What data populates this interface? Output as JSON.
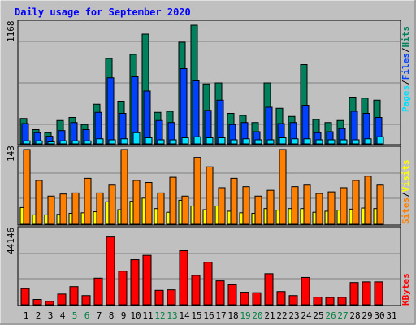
{
  "title": "Daily usage for September 2020",
  "colors": {
    "background": "#c0c0c0",
    "hits": "#00805c",
    "files": "#0040ff",
    "pages": "#00e0ff",
    "visits": "#ffff00",
    "sites": "#ff8000",
    "kbytes": "#ff0000",
    "weekend_day_label": "#008040",
    "title": "#0000ff"
  },
  "chart_data": [
    {
      "type": "bar",
      "panel": "hits-files-pages",
      "ymax_label": "1168",
      "ylim": [
        0,
        1168
      ],
      "legend": [
        "Pages",
        "/",
        "Files",
        "/",
        "Hits"
      ],
      "categories": [
        "1",
        "2",
        "3",
        "4",
        "5",
        "6",
        "7",
        "8",
        "9",
        "10",
        "11",
        "12",
        "13",
        "14",
        "15",
        "16",
        "17",
        "18",
        "19",
        "20",
        "21",
        "22",
        "23",
        "24",
        "25",
        "26",
        "27",
        "28",
        "29",
        "30",
        "31"
      ],
      "series": [
        {
          "name": "Hits",
          "values": [
            250,
            140,
            110,
            230,
            260,
            190,
            390,
            840,
            420,
            880,
            1080,
            310,
            320,
            1000,
            1168,
            590,
            600,
            300,
            280,
            210,
            600,
            350,
            270,
            780,
            240,
            210,
            230,
            460,
            450,
            430,
            0
          ]
        },
        {
          "name": "Files",
          "values": [
            200,
            110,
            75,
            130,
            210,
            140,
            310,
            650,
            300,
            660,
            520,
            230,
            210,
            740,
            620,
            330,
            430,
            190,
            210,
            120,
            360,
            200,
            210,
            380,
            110,
            120,
            150,
            320,
            300,
            260,
            0
          ]
        },
        {
          "name": "Pages",
          "values": [
            30,
            30,
            20,
            30,
            30,
            30,
            50,
            40,
            50,
            110,
            60,
            40,
            40,
            60,
            70,
            60,
            60,
            40,
            50,
            40,
            40,
            60,
            50,
            50,
            40,
            40,
            40,
            40,
            50,
            70,
            0
          ]
        }
      ]
    },
    {
      "type": "bar",
      "panel": "visits-sites",
      "ymax_label": "143",
      "ylim": [
        0,
        143
      ],
      "legend": [
        "Sites",
        "/",
        "Visits"
      ],
      "categories": [
        "1",
        "2",
        "3",
        "4",
        "5",
        "6",
        "7",
        "8",
        "9",
        "10",
        "11",
        "12",
        "13",
        "14",
        "15",
        "16",
        "17",
        "18",
        "19",
        "20",
        "21",
        "22",
        "23",
        "24",
        "25",
        "26",
        "27",
        "28",
        "29",
        "30",
        "31"
      ],
      "series": [
        {
          "name": "Sites",
          "values": [
            143,
            84,
            54,
            58,
            60,
            88,
            60,
            75,
            143,
            84,
            80,
            60,
            90,
            54,
            128,
            110,
            70,
            88,
            72,
            54,
            65,
            143,
            72,
            75,
            59,
            62,
            70,
            84,
            92,
            75,
            0
          ]
        },
        {
          "name": "Visits",
          "values": [
            32,
            18,
            18,
            19,
            21,
            22,
            24,
            43,
            28,
            44,
            50,
            30,
            23,
            46,
            35,
            28,
            35,
            25,
            22,
            21,
            30,
            27,
            30,
            30,
            23,
            25,
            27,
            29,
            31,
            30,
            0
          ]
        }
      ]
    },
    {
      "type": "bar",
      "panel": "kbytes",
      "ymax_label": "44146",
      "ylim": [
        0,
        44146
      ],
      "legend": [
        "KBytes"
      ],
      "categories": [
        "1",
        "2",
        "3",
        "4",
        "5",
        "6",
        "7",
        "8",
        "9",
        "10",
        "11",
        "12",
        "13",
        "14",
        "15",
        "16",
        "17",
        "18",
        "19",
        "20",
        "21",
        "22",
        "23",
        "24",
        "25",
        "26",
        "27",
        "28",
        "29",
        "30",
        "31"
      ],
      "series": [
        {
          "name": "KBytes",
          "values": [
            9500,
            3100,
            2000,
            6300,
            10700,
            5400,
            15700,
            40000,
            19800,
            26600,
            29200,
            8500,
            8800,
            31900,
            17300,
            25100,
            14100,
            11800,
            7400,
            7100,
            18300,
            7800,
            5400,
            16100,
            4500,
            4300,
            4400,
            13100,
            13500,
            13500,
            0
          ]
        }
      ]
    }
  ],
  "weekend_days": [
    "5",
    "6",
    "12",
    "13",
    "19",
    "20",
    "26",
    "27"
  ]
}
